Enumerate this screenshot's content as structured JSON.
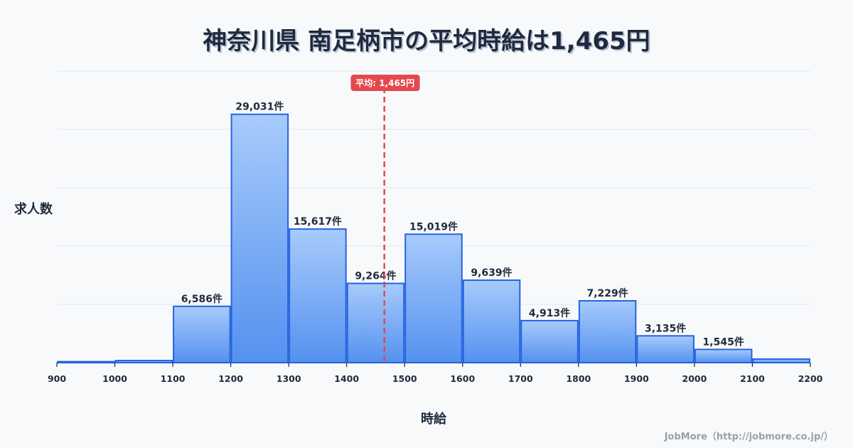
{
  "title": "神奈川県 南足柄市の平均時給は1,465円",
  "y_axis_label": "求人数",
  "x_axis_label": "時給",
  "credit": "JobMore（http://jobmore.co.jp/）",
  "mean_badge": "平均: 1,465円",
  "colors": {
    "bar_top": "#a7cbfb",
    "bar_bottom": "#5591f0",
    "bar_stroke": "#2563e0",
    "mean_line": "#e5484d",
    "grid": "#e1e6ee",
    "text": "#1f2a3c"
  },
  "chart_data": {
    "type": "bar",
    "title": "神奈川県 南足柄市の平均時給は1,465円",
    "xlabel": "時給",
    "ylabel": "求人数",
    "bins": [
      [
        900,
        1000
      ],
      [
        1000,
        1100
      ],
      [
        1100,
        1200
      ],
      [
        1200,
        1300
      ],
      [
        1300,
        1400
      ],
      [
        1400,
        1500
      ],
      [
        1500,
        1600
      ],
      [
        1600,
        1700
      ],
      [
        1700,
        1800
      ],
      [
        1800,
        1900
      ],
      [
        1900,
        2000
      ],
      [
        2000,
        2100
      ],
      [
        2100,
        2200
      ]
    ],
    "categories": [
      "900-1000",
      "1000-1100",
      "1100-1200",
      "1200-1300",
      "1300-1400",
      "1400-1500",
      "1500-1600",
      "1600-1700",
      "1700-1800",
      "1800-1900",
      "1900-2000",
      "2000-2100",
      "2100-2200"
    ],
    "values": [
      120,
      250,
      6586,
      29031,
      15617,
      9264,
      15019,
      9639,
      4913,
      7229,
      3135,
      1545,
      420
    ],
    "value_labels": [
      "",
      "",
      "6,586件",
      "29,031件",
      "15,617件",
      "9,264件",
      "15,019件",
      "9,639件",
      "4,913件",
      "7,229件",
      "3,135件",
      "1,545件",
      ""
    ],
    "x_ticks": [
      900,
      1000,
      1100,
      1200,
      1300,
      1400,
      1500,
      1600,
      1700,
      1800,
      1900,
      2000,
      2100,
      2200
    ],
    "xlim": [
      900,
      2200
    ],
    "ylim": [
      0,
      34080
    ],
    "grid": true,
    "mean": 1465,
    "mean_label": "平均: 1,465円"
  }
}
